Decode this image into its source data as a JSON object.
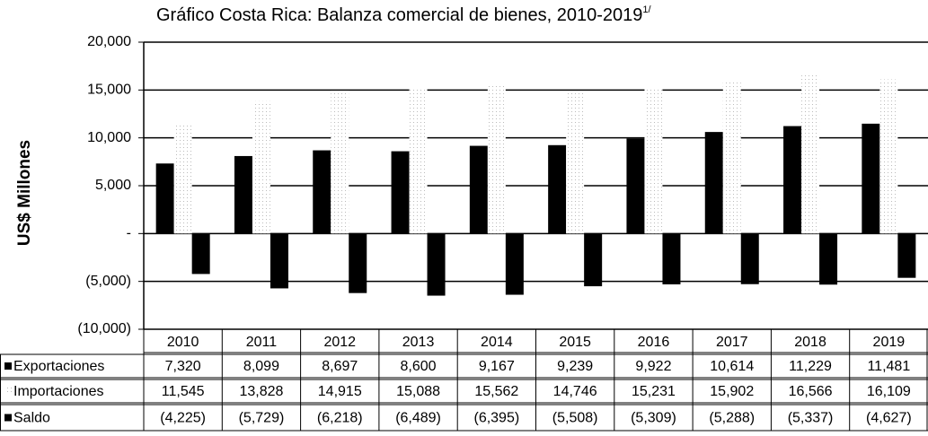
{
  "chart_data": {
    "type": "bar",
    "title": "Gráfico Costa Rica: Balanza comercial de bienes, 2010-2019",
    "title_superscript": "1/",
    "y_axis_label": "US$ Millones",
    "categories": [
      "2010",
      "2011",
      "2012",
      "2013",
      "2014",
      "2015",
      "2016",
      "2017",
      "2018",
      "2019"
    ],
    "series": [
      {
        "name": "Exportaciones",
        "color": "#000000",
        "values": [
          7320,
          8099,
          8697,
          8600,
          9167,
          9239,
          9922,
          10614,
          11229,
          11481
        ],
        "value_labels": [
          "7,320",
          "8,099",
          "8,697",
          "8,600",
          "9,167",
          "9,239",
          "9,922",
          "10,614",
          "11,229",
          "11,481"
        ]
      },
      {
        "name": "Importaciones",
        "color": "#f2f2f2",
        "values": [
          11545,
          13828,
          14915,
          15088,
          15562,
          14746,
          15231,
          15902,
          16566,
          16109
        ],
        "value_labels": [
          "11,545",
          "13,828",
          "14,915",
          "15,088",
          "15,562",
          "14,746",
          "15,231",
          "15,902",
          "16,566",
          "16,109"
        ]
      },
      {
        "name": "Saldo",
        "color": "#000000",
        "values": [
          -4225,
          -5729,
          -6218,
          -6489,
          -6395,
          -5508,
          -5309,
          -5288,
          -5337,
          -4627
        ],
        "value_labels": [
          "(4,225)",
          "(5,729)",
          "(6,218)",
          "(6,489)",
          "(6,395)",
          "(5,508)",
          "(5,309)",
          "(5,288)",
          "(5,337)",
          "(4,627)"
        ]
      }
    ],
    "ylim": [
      -10000,
      20000
    ],
    "yticks": [
      {
        "value": 20000,
        "label": "20,000"
      },
      {
        "value": 15000,
        "label": "15,000"
      },
      {
        "value": 10000,
        "label": "10,000"
      },
      {
        "value": 5000,
        "label": "5,000"
      },
      {
        "value": 0,
        "label": "-"
      },
      {
        "value": -5000,
        "label": "(5,000)"
      },
      {
        "value": -10000,
        "label": "(10,000)"
      }
    ],
    "grid": true
  }
}
